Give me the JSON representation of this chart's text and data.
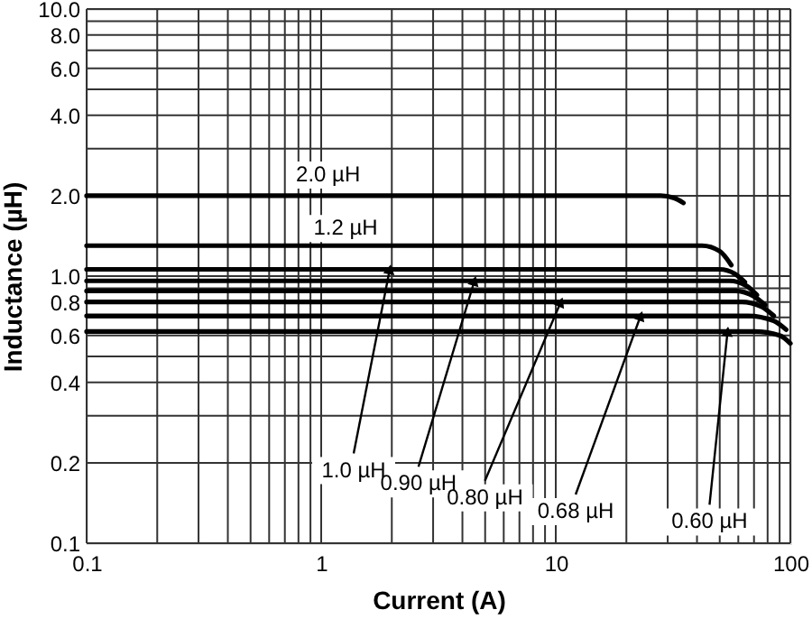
{
  "chart_data": {
    "type": "line",
    "xlabel": "Current (A)",
    "ylabel": "Inductance (µH)",
    "log": "xy",
    "grid": true,
    "marker": "none",
    "line_style": "solid",
    "xlim": [
      0.1,
      100
    ],
    "ylim": [
      0.1,
      10
    ],
    "xticks": [
      0.1,
      1,
      10,
      100
    ],
    "yticks": [
      0.1,
      0.2,
      0.4,
      0.6,
      0.8,
      {
        "value": 1,
        "label": "1.0"
      },
      {
        "value": 2,
        "label": "2.0"
      },
      {
        "value": 4,
        "label": "4.0"
      },
      {
        "value": 6,
        "label": "6.0"
      },
      {
        "value": 8,
        "label": "8.0"
      },
      {
        "value": 10,
        "label": "10.0"
      }
    ],
    "series": [
      {
        "color": "#000000",
        "x": [
          0.1,
          28,
          32,
          35
        ],
        "values": [
          2.0,
          2.0,
          1.96,
          1.88
        ]
      },
      {
        "color": "#000000",
        "x": [
          0.1,
          42,
          50,
          56
        ],
        "values": [
          1.3,
          1.3,
          1.24,
          1.1
        ]
      },
      {
        "color": "#000000",
        "x": [
          0.1,
          50,
          58,
          64
        ],
        "values": [
          1.06,
          1.06,
          1.02,
          0.95
        ]
      },
      {
        "color": "#000000",
        "x": [
          0.1,
          55,
          65,
          72
        ],
        "values": [
          0.96,
          0.96,
          0.92,
          0.85
        ]
      },
      {
        "color": "#000000",
        "x": [
          0.1,
          58,
          70,
          78
        ],
        "values": [
          0.88,
          0.88,
          0.84,
          0.78
        ]
      },
      {
        "color": "#000000",
        "x": [
          0.1,
          62,
          75,
          85
        ],
        "values": [
          0.8,
          0.8,
          0.77,
          0.71
        ]
      },
      {
        "color": "#000000",
        "x": [
          0.1,
          66,
          85,
          96
        ],
        "values": [
          0.71,
          0.71,
          0.68,
          0.63
        ]
      },
      {
        "color": "#000000",
        "x": [
          0.1,
          70,
          90,
          100
        ],
        "values": [
          0.62,
          0.62,
          0.6,
          0.56
        ]
      }
    ],
    "annotations": [
      {
        "text": "2.0 µH",
        "x": 1.07,
        "y": 2.0
      },
      {
        "text": "1.2 µH",
        "x": 1.27,
        "y": 1.3
      },
      {
        "text": "1.0 µH",
        "x": 1.96,
        "y": 1.06
      },
      {
        "text": "0.90 µH",
        "x": 4.5,
        "y": 0.96
      },
      {
        "text": "0.80 µH",
        "x": 10.5,
        "y": 0.8
      },
      {
        "text": "0.68 µH",
        "x": 23,
        "y": 0.71
      },
      {
        "text": "0.60 µH",
        "x": 54,
        "y": 0.62
      }
    ]
  }
}
